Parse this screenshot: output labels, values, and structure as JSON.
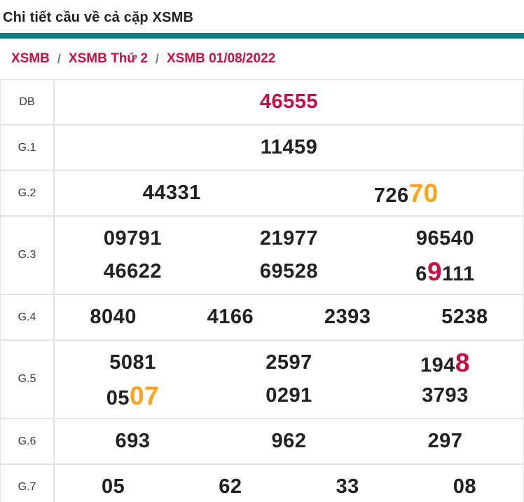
{
  "page": {
    "title": "Chi tiết cầu về cả cặp XSMB"
  },
  "colors": {
    "accent_teal": "#087e84",
    "highlight_red": "#c50f46",
    "highlight_orange": "#ffa31a",
    "number_dark": "#212121",
    "border_gray": "#e4e4e4",
    "breadcrumb_separator_gray": "#64808e"
  },
  "breadcrumb": {
    "separator": "/",
    "items": [
      "XSMB",
      "XSMB Thứ 2",
      "XSMB 01/08/2022"
    ]
  },
  "table": {
    "rows": [
      {
        "label": "DB",
        "lines": [
          [
            [
              {
                "t": "46555",
                "color": "red"
              }
            ]
          ]
        ]
      },
      {
        "label": "G.1",
        "lines": [
          [
            [
              {
                "t": "11459"
              }
            ]
          ]
        ]
      },
      {
        "label": "G.2",
        "lines": [
          [
            [
              {
                "t": "44331"
              }
            ],
            [
              {
                "t": "726"
              },
              {
                "t": "70",
                "color": "orange",
                "big": true
              }
            ]
          ]
        ]
      },
      {
        "label": "G.3",
        "lines": [
          [
            [
              {
                "t": "09791"
              }
            ],
            [
              {
                "t": "21977"
              }
            ],
            [
              {
                "t": "96540"
              }
            ]
          ],
          [
            [
              {
                "t": "46622"
              }
            ],
            [
              {
                "t": "69528"
              }
            ],
            [
              {
                "t": "6"
              },
              {
                "t": "9",
                "color": "red",
                "big": true
              },
              {
                "t": "111"
              }
            ]
          ]
        ]
      },
      {
        "label": "G.4",
        "lines": [
          [
            [
              {
                "t": "8040"
              }
            ],
            [
              {
                "t": "4166"
              }
            ],
            [
              {
                "t": "2393"
              }
            ],
            [
              {
                "t": "5238"
              }
            ]
          ]
        ]
      },
      {
        "label": "G.5",
        "lines": [
          [
            [
              {
                "t": "5081"
              }
            ],
            [
              {
                "t": "2597"
              }
            ],
            [
              {
                "t": "194"
              },
              {
                "t": "8",
                "color": "red",
                "big": true
              }
            ]
          ],
          [
            [
              {
                "t": "05"
              },
              {
                "t": "07",
                "color": "orange",
                "big": true
              }
            ],
            [
              {
                "t": "0291"
              }
            ],
            [
              {
                "t": "3793"
              }
            ]
          ]
        ]
      },
      {
        "label": "G.6",
        "lines": [
          [
            [
              {
                "t": "693"
              }
            ],
            [
              {
                "t": "962"
              }
            ],
            [
              {
                "t": "297"
              }
            ]
          ]
        ]
      },
      {
        "label": "G.7",
        "lines": [
          [
            [
              {
                "t": "05"
              }
            ],
            [
              {
                "t": "62"
              }
            ],
            [
              {
                "t": "33"
              }
            ],
            [
              {
                "t": "08"
              }
            ]
          ]
        ]
      }
    ]
  }
}
